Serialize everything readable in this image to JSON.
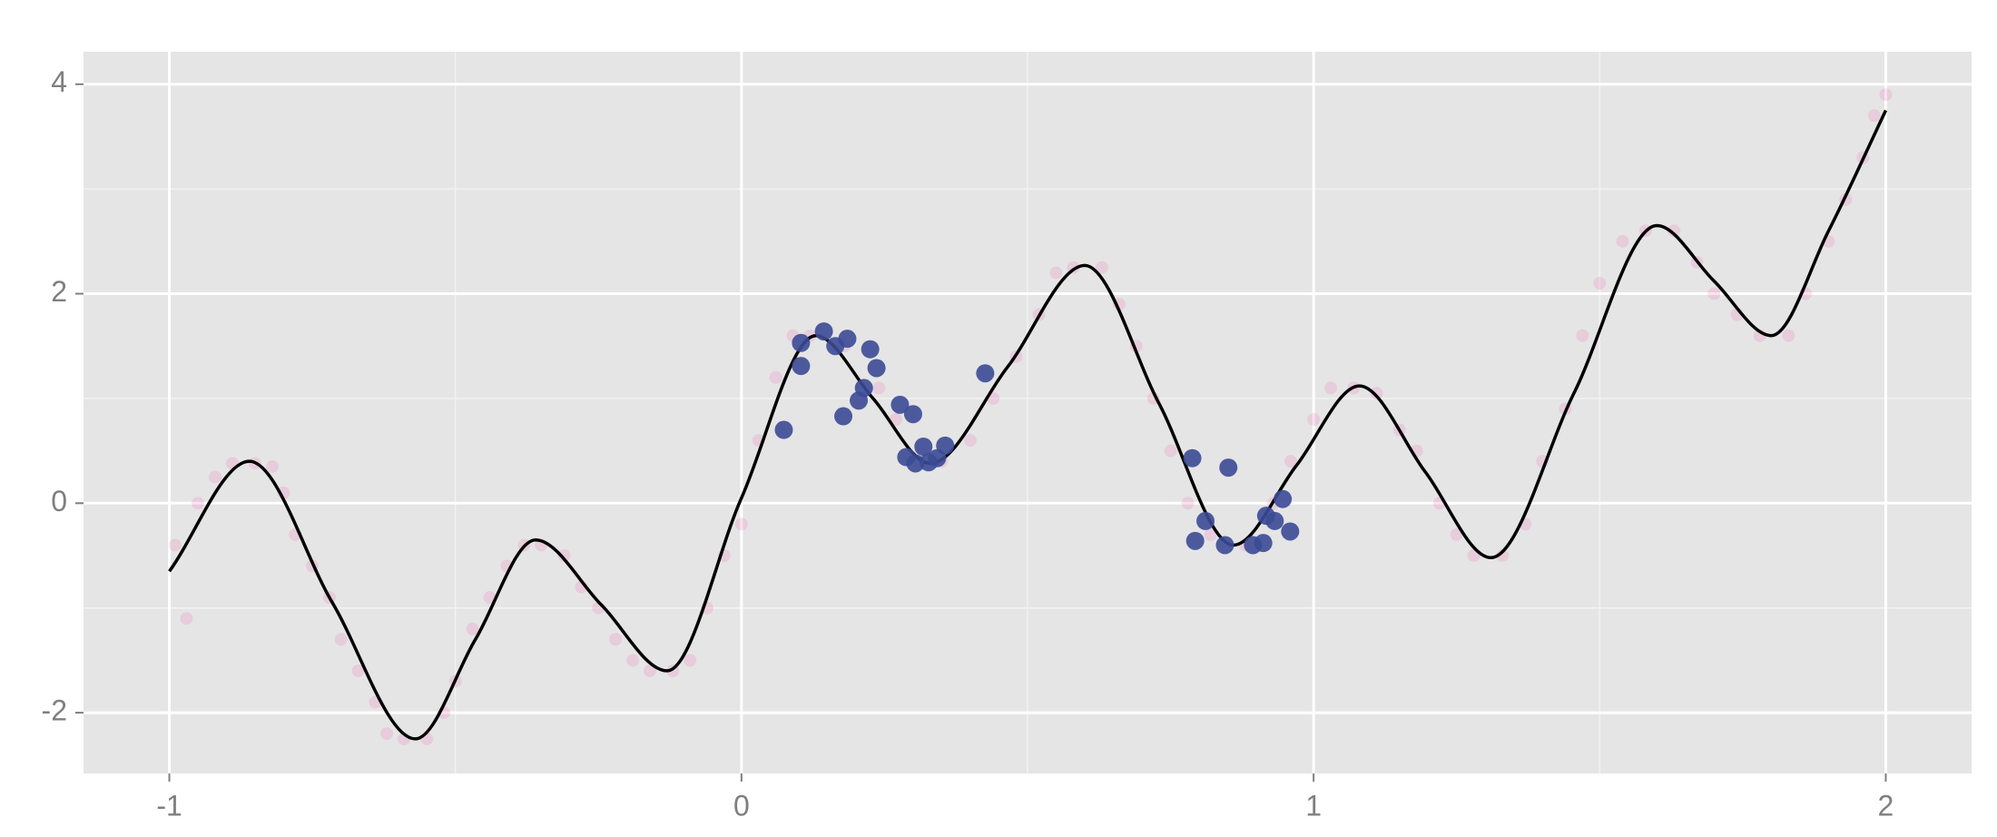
{
  "chart_data": {
    "type": "scatter",
    "xlim": [
      -1.15,
      2.15
    ],
    "ylim": [
      -2.58,
      4.31
    ],
    "xticks": [
      -1,
      0,
      1,
      2
    ],
    "yticks": [
      -2,
      0,
      2,
      4
    ],
    "grid": true,
    "background": "#e5e5e5",
    "series": [
      {
        "mode": "markers",
        "color": "#ee6ab5",
        "alpha": 0.2,
        "x": [
          -0.99,
          -0.97,
          -0.95,
          -0.92,
          -0.89,
          -0.85,
          -0.82,
          -0.8,
          -0.78,
          -0.75,
          -0.72,
          -0.7,
          -0.67,
          -0.64,
          -0.62,
          -0.59,
          -0.55,
          -0.52,
          -0.5,
          -0.47,
          -0.44,
          -0.41,
          -0.38,
          -0.35,
          -0.31,
          -0.28,
          -0.25,
          -0.22,
          -0.19,
          -0.16,
          -0.12,
          -0.09,
          -0.06,
          -0.03,
          0.0,
          0.03,
          0.06,
          0.09,
          0.12,
          0.18,
          0.24,
          0.27,
          0.31,
          0.35,
          0.4,
          0.44,
          0.48,
          0.52,
          0.55,
          0.58,
          0.63,
          0.66,
          0.69,
          0.72,
          0.75,
          0.78,
          0.82,
          0.88,
          0.93,
          0.96,
          1.0,
          1.03,
          1.07,
          1.11,
          1.15,
          1.18,
          1.22,
          1.25,
          1.28,
          1.33,
          1.37,
          1.4,
          1.44,
          1.47,
          1.5,
          1.54,
          1.58,
          1.63,
          1.67,
          1.7,
          1.74,
          1.78,
          1.83,
          1.86,
          1.9,
          1.93,
          1.96,
          1.98,
          2.0
        ],
        "values": [
          -0.4,
          -1.1,
          0.0,
          0.25,
          0.38,
          0.38,
          0.35,
          0.1,
          -0.3,
          -0.6,
          -0.9,
          -1.3,
          -1.6,
          -1.9,
          -2.2,
          -2.25,
          -2.25,
          -2.0,
          -1.7,
          -1.2,
          -0.9,
          -0.6,
          -0.4,
          -0.4,
          -0.5,
          -0.8,
          -1.0,
          -1.3,
          -1.5,
          -1.6,
          -1.6,
          -1.5,
          -1.0,
          -0.5,
          -0.2,
          0.6,
          1.2,
          1.6,
          1.6,
          1.5,
          1.1,
          0.8,
          0.45,
          0.4,
          0.6,
          1.0,
          1.4,
          1.8,
          2.2,
          2.25,
          2.25,
          1.9,
          1.5,
          1.0,
          0.5,
          0.0,
          -0.3,
          -0.4,
          0.0,
          0.4,
          0.8,
          1.1,
          1.1,
          1.05,
          0.7,
          0.5,
          0.0,
          -0.3,
          -0.5,
          -0.5,
          -0.2,
          0.4,
          0.9,
          1.6,
          2.1,
          2.5,
          2.6,
          2.6,
          2.3,
          2.0,
          1.8,
          1.6,
          1.6,
          2.0,
          2.5,
          2.9,
          3.3,
          3.7,
          3.9
        ]
      },
      {
        "mode": "line",
        "color": "#000000",
        "x": [
          -1,
          -0.86,
          -0.715,
          -0.57,
          -0.465,
          -0.36,
          -0.245,
          -0.13,
          0.0,
          0.13,
          0.23,
          0.33,
          0.465,
          0.6,
          0.73,
          0.86,
          0.97,
          1.08,
          1.195,
          1.31,
          1.455,
          1.6,
          1.7,
          1.8,
          1.9,
          2.0
        ],
        "values": [
          -0.65,
          0.4,
          -0.95,
          -2.25,
          -1.3,
          -0.35,
          -0.97,
          -1.6,
          0.05,
          1.6,
          1.0,
          0.38,
          1.3,
          2.27,
          0.95,
          -0.4,
          0.36,
          1.12,
          0.3,
          -0.52,
          1.05,
          2.65,
          2.12,
          1.6,
          2.6,
          3.75
        ]
      },
      {
        "mode": "markers",
        "color": "#3b4a95",
        "alpha": 0.9,
        "x": [
          0.074,
          0.104,
          0.104,
          0.144,
          0.164,
          0.185,
          0.178,
          0.205,
          0.214,
          0.225,
          0.236,
          0.277,
          0.3,
          0.288,
          0.304,
          0.318,
          0.327,
          0.342,
          0.356,
          0.426,
          0.788,
          0.851,
          0.793,
          0.811,
          0.845,
          0.894,
          0.912,
          0.917,
          0.932,
          0.946,
          0.959
        ],
        "values": [
          0.7,
          1.31,
          1.53,
          1.64,
          1.5,
          1.57,
          0.83,
          0.98,
          1.1,
          1.47,
          1.29,
          0.94,
          0.85,
          0.44,
          0.38,
          0.54,
          0.39,
          0.43,
          0.55,
          1.24,
          0.43,
          0.34,
          -0.36,
          -0.17,
          -0.4,
          -0.4,
          -0.38,
          -0.12,
          -0.17,
          0.04,
          -0.27
        ]
      }
    ]
  }
}
